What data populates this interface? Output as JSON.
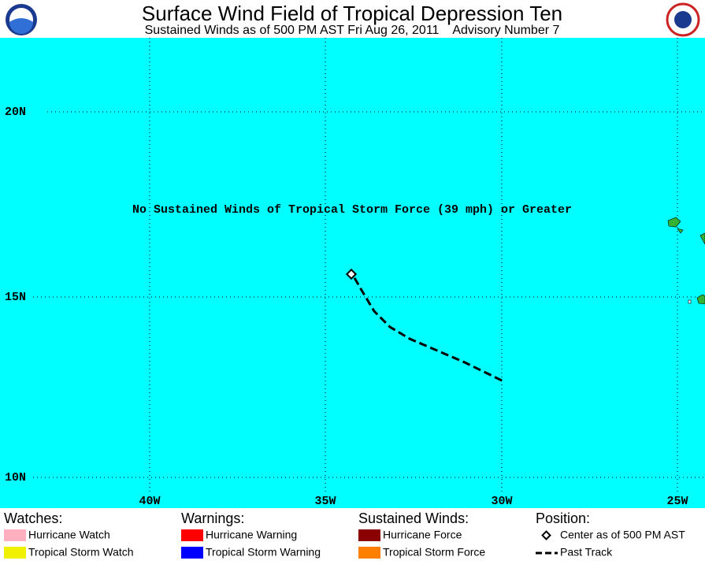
{
  "header": {
    "title": "Surface Wind Field of Tropical Depression Ten",
    "subtitle": "Sustained Winds as of 500 PM AST Fri Aug 26, 2011    Advisory Number 7"
  },
  "map": {
    "annotation": "No Sustained Winds of Tropical Storm Force (39 mph) or Greater",
    "lat_labels": [
      "20N",
      "15N",
      "10N"
    ],
    "lon_labels": [
      "40W",
      "35W",
      "30W",
      "25W"
    ]
  },
  "legend": [
    {
      "title": "Watches:",
      "items": [
        "Hurricane Watch",
        "Tropical Storm Watch"
      ]
    },
    {
      "title": "Warnings:",
      "items": [
        "Hurricane Warning",
        "Tropical Storm Warning"
      ]
    },
    {
      "title": "Sustained Winds:",
      "items": [
        "Hurricane Force",
        "Tropical Storm Force"
      ]
    },
    {
      "title": "Position:",
      "items": [
        "Center as of 500 PM AST",
        "Past Track"
      ]
    }
  ]
}
